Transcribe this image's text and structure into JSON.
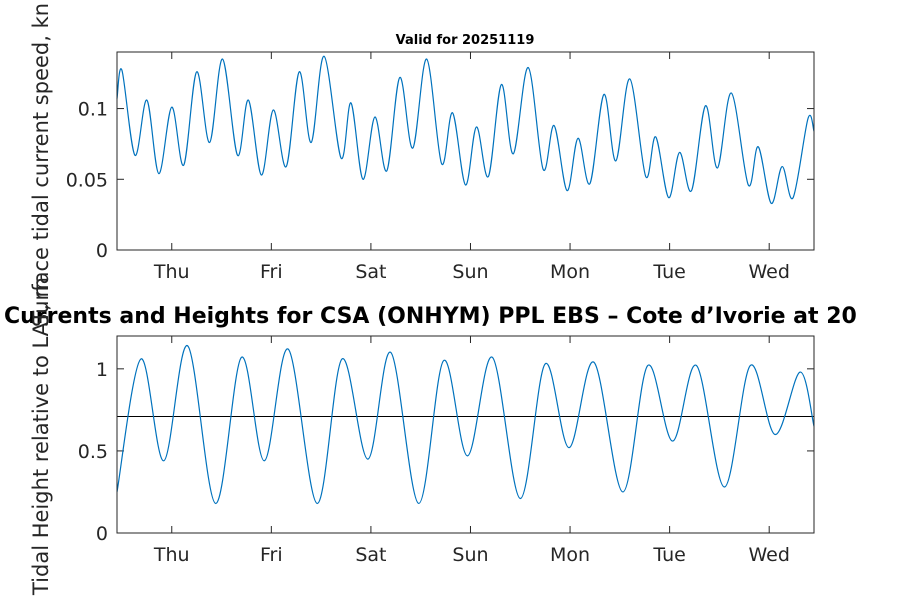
{
  "chart_data": [
    {
      "type": "line",
      "title": "Valid for 20251119",
      "xlabel": "",
      "ylabel": "Surface tidal current speed, kn",
      "x_tick_labels": [
        "Thu",
        "Fri",
        "Sat",
        "Sun",
        "Mon",
        "Tue",
        "Wed"
      ],
      "x_tick_positions_days": [
        0.55,
        1.55,
        2.55,
        3.55,
        4.55,
        5.55,
        6.55
      ],
      "xlim_days": [
        0,
        7
      ],
      "ylim": [
        0,
        0.14
      ],
      "y_ticks": [
        0,
        0.05,
        0.1
      ],
      "y_tick_labels": [
        "0",
        "0.05",
        "0.1"
      ],
      "series": [
        {
          "name": "Surface tidal current speed",
          "color": "#0072bd",
          "points": [
            [
              0.0,
              0.107
            ],
            [
              0.05,
              0.127
            ],
            [
              0.18,
              0.067
            ],
            [
              0.3,
              0.106
            ],
            [
              0.42,
              0.054
            ],
            [
              0.55,
              0.101
            ],
            [
              0.67,
              0.06
            ],
            [
              0.8,
              0.126
            ],
            [
              0.93,
              0.076
            ],
            [
              1.06,
              0.135
            ],
            [
              1.21,
              0.067
            ],
            [
              1.32,
              0.106
            ],
            [
              1.45,
              0.053
            ],
            [
              1.57,
              0.099
            ],
            [
              1.7,
              0.059
            ],
            [
              1.83,
              0.126
            ],
            [
              1.95,
              0.076
            ],
            [
              2.08,
              0.137
            ],
            [
              2.25,
              0.065
            ],
            [
              2.35,
              0.104
            ],
            [
              2.47,
              0.05
            ],
            [
              2.59,
              0.094
            ],
            [
              2.71,
              0.056
            ],
            [
              2.84,
              0.122
            ],
            [
              2.97,
              0.072
            ],
            [
              3.11,
              0.135
            ],
            [
              3.26,
              0.061
            ],
            [
              3.37,
              0.097
            ],
            [
              3.5,
              0.046
            ],
            [
              3.61,
              0.087
            ],
            [
              3.73,
              0.052
            ],
            [
              3.86,
              0.117
            ],
            [
              3.98,
              0.068
            ],
            [
              4.13,
              0.129
            ],
            [
              4.28,
              0.057
            ],
            [
              4.39,
              0.088
            ],
            [
              4.52,
              0.042
            ],
            [
              4.63,
              0.079
            ],
            [
              4.75,
              0.047
            ],
            [
              4.89,
              0.11
            ],
            [
              5.01,
              0.063
            ],
            [
              5.15,
              0.121
            ],
            [
              5.31,
              0.052
            ],
            [
              5.41,
              0.08
            ],
            [
              5.54,
              0.037
            ],
            [
              5.65,
              0.069
            ],
            [
              5.77,
              0.042
            ],
            [
              5.91,
              0.102
            ],
            [
              6.03,
              0.058
            ],
            [
              6.17,
              0.111
            ],
            [
              6.34,
              0.046
            ],
            [
              6.44,
              0.073
            ],
            [
              6.57,
              0.033
            ],
            [
              6.68,
              0.059
            ],
            [
              6.79,
              0.037
            ],
            [
              6.94,
              0.093
            ],
            [
              7.0,
              0.084
            ]
          ]
        }
      ]
    },
    {
      "type": "line",
      "title": "Currents and Heights for CSA (ONHYM) PPL EBS  – Cote d’Ivorie at 20",
      "xlabel": "",
      "ylabel": "Tidal Height relative to LAT, m",
      "x_tick_labels": [
        "Thu",
        "Fri",
        "Sat",
        "Sun",
        "Mon",
        "Tue",
        "Wed"
      ],
      "x_tick_positions_days": [
        0.55,
        1.55,
        2.55,
        3.55,
        4.55,
        5.55,
        6.55
      ],
      "xlim_days": [
        0,
        7
      ],
      "ylim": [
        0,
        1.2
      ],
      "y_ticks": [
        0,
        0.5,
        1
      ],
      "y_tick_labels": [
        "0",
        "0.5",
        "1"
      ],
      "reference_line": {
        "name": "Mean level",
        "value": 0.71,
        "color": "#000000"
      },
      "series": [
        {
          "name": "Tidal Height",
          "color": "#0072bd",
          "points": [
            [
              0.0,
              0.25
            ],
            [
              0.24,
              1.06
            ],
            [
              0.47,
              0.44
            ],
            [
              0.71,
              1.14
            ],
            [
              0.99,
              0.18
            ],
            [
              1.25,
              1.07
            ],
            [
              1.48,
              0.44
            ],
            [
              1.72,
              1.12
            ],
            [
              2.01,
              0.18
            ],
            [
              2.26,
              1.06
            ],
            [
              2.52,
              0.45
            ],
            [
              2.75,
              1.1
            ],
            [
              3.03,
              0.18
            ],
            [
              3.28,
              1.05
            ],
            [
              3.52,
              0.47
            ],
            [
              3.77,
              1.07
            ],
            [
              4.05,
              0.21
            ],
            [
              4.3,
              1.03
            ],
            [
              4.54,
              0.52
            ],
            [
              4.79,
              1.04
            ],
            [
              5.08,
              0.25
            ],
            [
              5.33,
              1.02
            ],
            [
              5.58,
              0.56
            ],
            [
              5.82,
              1.02
            ],
            [
              6.1,
              0.28
            ],
            [
              6.36,
              1.02
            ],
            [
              6.61,
              0.6
            ],
            [
              6.86,
              0.98
            ],
            [
              7.0,
              0.65
            ]
          ]
        }
      ]
    }
  ]
}
